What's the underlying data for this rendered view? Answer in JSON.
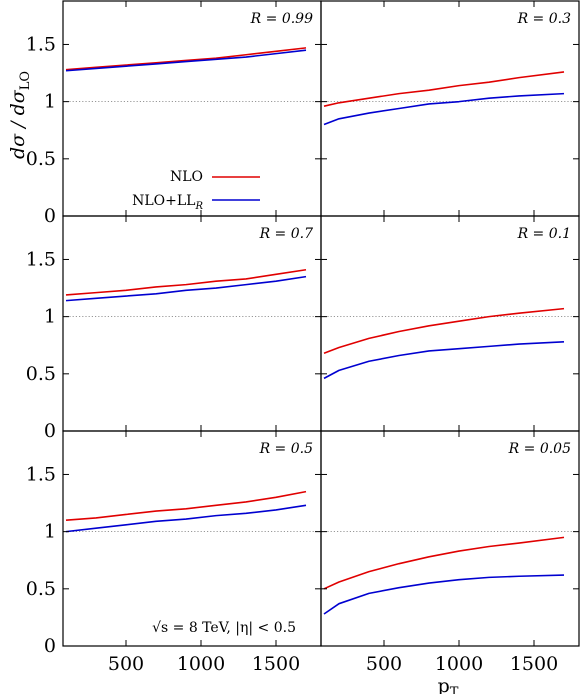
{
  "chart_data": {
    "type": "line",
    "ylabel": "dσ / dσ",
    "ylabel_sub": "LO",
    "xlabel": "p",
    "xlabel_sub": "T",
    "xlim": [
      80,
      1800
    ],
    "ylim": [
      0,
      1.88
    ],
    "xticks": [
      "500",
      "1000",
      "1500"
    ],
    "xtick_values": [
      500,
      1000,
      1500
    ],
    "yticks": [
      "0",
      "0.5",
      "1",
      "1.5"
    ],
    "ytick_values": [
      0,
      0.5,
      1,
      1.5
    ],
    "reference_line": 1,
    "legend": [
      {
        "name": "NLO",
        "color": "#e00000"
      },
      {
        "name": "NLO+LL",
        "sub": "R",
        "color": "#0000d0"
      }
    ],
    "note": {
      "prefix": "√s = 8 TeV, |η| < 0.5"
    },
    "panels": [
      {
        "r_label": "R = 0.99",
        "col": 0,
        "row": 0,
        "x": [
          100,
          300,
          500,
          700,
          900,
          1100,
          1300,
          1500,
          1700
        ],
        "series": [
          {
            "name": "NLO",
            "color": "#e00000",
            "values": [
              1.28,
              1.3,
              1.32,
              1.34,
              1.36,
              1.38,
              1.41,
              1.44,
              1.47
            ]
          },
          {
            "name": "NLO+LL",
            "color": "#0000d0",
            "values": [
              1.27,
              1.29,
              1.31,
              1.33,
              1.35,
              1.37,
              1.39,
              1.42,
              1.45
            ]
          }
        ]
      },
      {
        "r_label": "R = 0.3",
        "col": 1,
        "row": 0,
        "x": [
          100,
          200,
          400,
          600,
          800,
          1000,
          1200,
          1400,
          1700
        ],
        "series": [
          {
            "name": "NLO",
            "color": "#e00000",
            "values": [
              0.96,
              0.99,
              1.03,
              1.07,
              1.1,
              1.14,
              1.17,
              1.21,
              1.26
            ]
          },
          {
            "name": "NLO+LL",
            "color": "#0000d0",
            "values": [
              0.8,
              0.85,
              0.9,
              0.94,
              0.98,
              1.0,
              1.03,
              1.05,
              1.07
            ]
          }
        ]
      },
      {
        "r_label": "R = 0.7",
        "col": 0,
        "row": 1,
        "x": [
          100,
          300,
          500,
          700,
          900,
          1100,
          1300,
          1500,
          1700
        ],
        "series": [
          {
            "name": "NLO",
            "color": "#e00000",
            "values": [
              1.19,
              1.21,
              1.23,
              1.26,
              1.28,
              1.31,
              1.33,
              1.37,
              1.41
            ]
          },
          {
            "name": "NLO+LL",
            "color": "#0000d0",
            "values": [
              1.14,
              1.16,
              1.18,
              1.2,
              1.23,
              1.25,
              1.28,
              1.31,
              1.35
            ]
          }
        ]
      },
      {
        "r_label": "R = 0.1",
        "col": 1,
        "row": 1,
        "x": [
          100,
          200,
          400,
          600,
          800,
          1000,
          1200,
          1400,
          1700
        ],
        "series": [
          {
            "name": "NLO",
            "color": "#e00000",
            "values": [
              0.68,
              0.73,
              0.81,
              0.87,
              0.92,
              0.96,
              1.0,
              1.03,
              1.07
            ]
          },
          {
            "name": "NLO+LL",
            "color": "#0000d0",
            "values": [
              0.46,
              0.53,
              0.61,
              0.66,
              0.7,
              0.72,
              0.74,
              0.76,
              0.78
            ]
          }
        ]
      },
      {
        "r_label": "R = 0.5",
        "col": 0,
        "row": 2,
        "x": [
          100,
          300,
          500,
          700,
          900,
          1100,
          1300,
          1500,
          1700
        ],
        "series": [
          {
            "name": "NLO",
            "color": "#e00000",
            "values": [
              1.1,
              1.12,
              1.15,
              1.18,
              1.2,
              1.23,
              1.26,
              1.3,
              1.35
            ]
          },
          {
            "name": "NLO+LL",
            "color": "#0000d0",
            "values": [
              1.0,
              1.03,
              1.06,
              1.09,
              1.11,
              1.14,
              1.16,
              1.19,
              1.23
            ]
          }
        ]
      },
      {
        "r_label": "R = 0.05",
        "col": 1,
        "row": 2,
        "x": [
          100,
          200,
          400,
          600,
          800,
          1000,
          1200,
          1400,
          1700
        ],
        "series": [
          {
            "name": "NLO",
            "color": "#e00000",
            "values": [
              0.5,
              0.56,
              0.65,
              0.72,
              0.78,
              0.83,
              0.87,
              0.9,
              0.95
            ]
          },
          {
            "name": "NLO+LL",
            "color": "#0000d0",
            "values": [
              0.28,
              0.37,
              0.46,
              0.51,
              0.55,
              0.58,
              0.6,
              0.61,
              0.62
            ]
          }
        ]
      }
    ]
  }
}
